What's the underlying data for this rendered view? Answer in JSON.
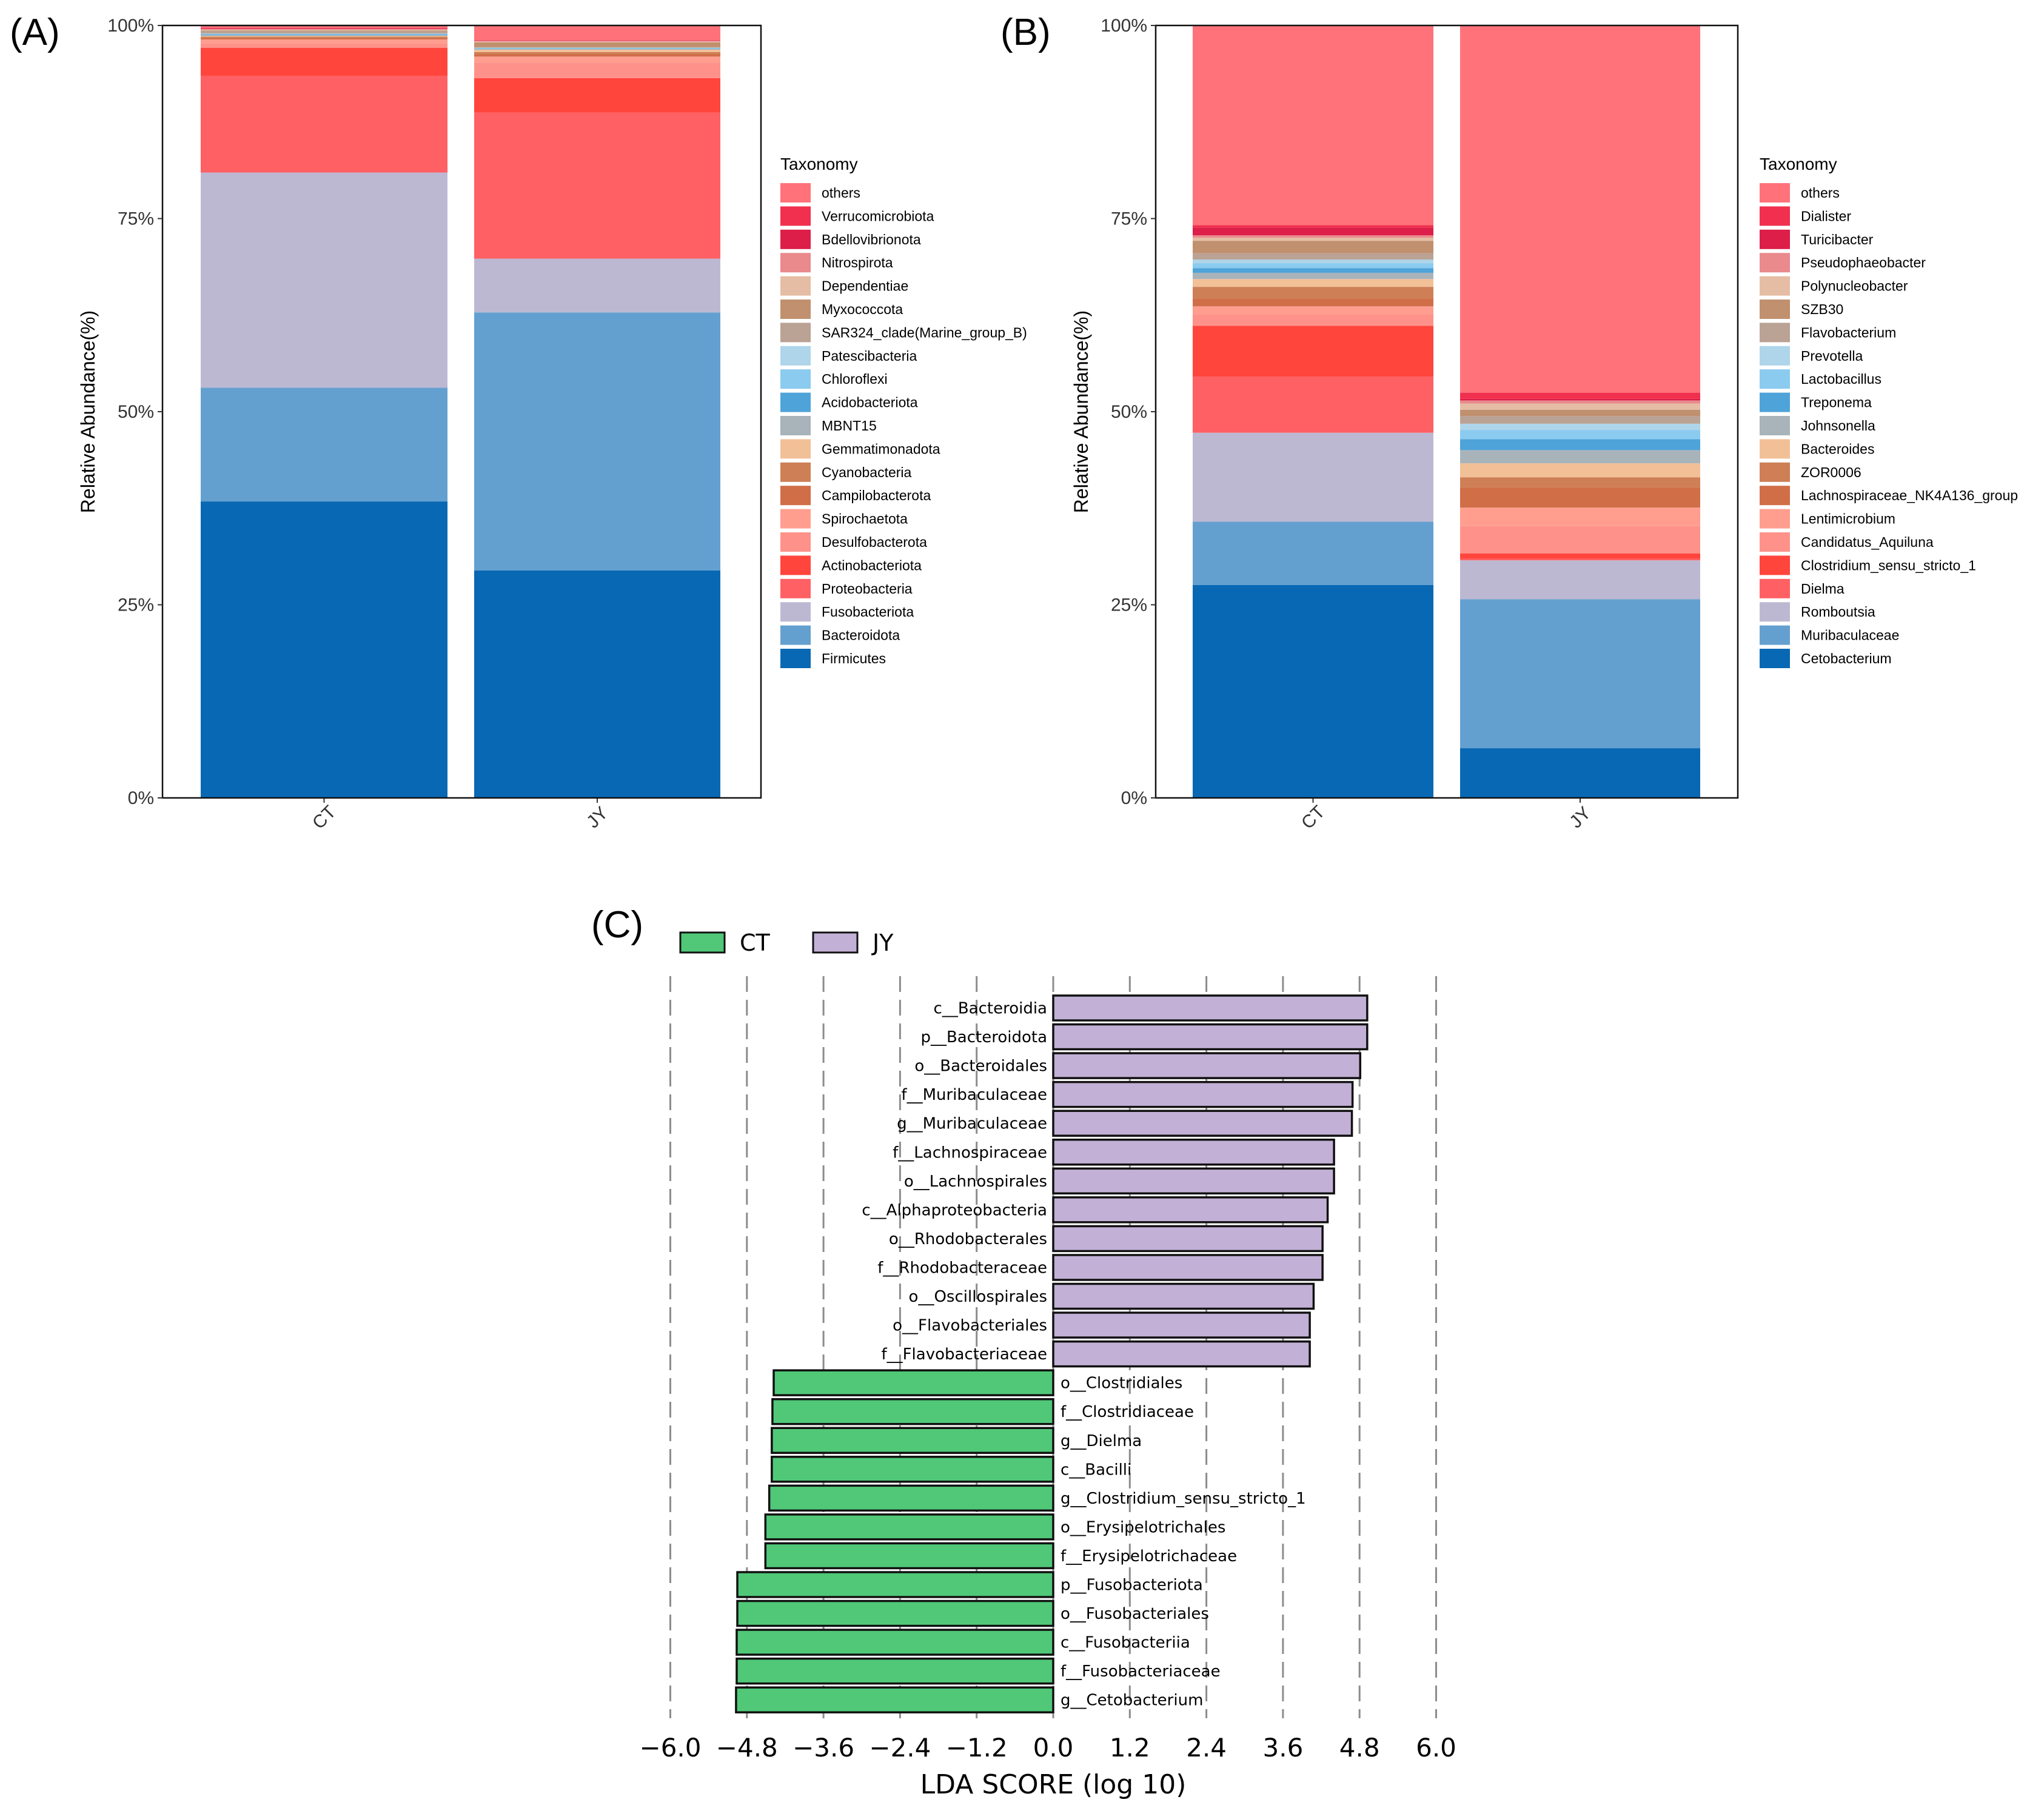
{
  "chart_data": [
    {
      "panel": "(A)",
      "type": "bar",
      "stacked": true,
      "ylabel": "Relative Abundance(%)",
      "ylim": [
        0,
        100
      ],
      "yticks": [
        "0%",
        "25%",
        "50%",
        "75%",
        "100%"
      ],
      "categories": [
        "CT",
        "JY"
      ],
      "legend_title": "Taxonomy",
      "legend_position": "right",
      "series": [
        {
          "name": "Firmicutes",
          "color": "#0868B4",
          "values": [
            38.3,
            29.6
          ]
        },
        {
          "name": "Bacteroidota",
          "color": "#64A0CF",
          "values": [
            14.7,
            33.6
          ]
        },
        {
          "name": "Fusobacteriota",
          "color": "#BDB8D2",
          "values": [
            27.8,
            7.0
          ]
        },
        {
          "name": "Proteobacteria",
          "color": "#FF6064",
          "values": [
            12.5,
            19.0
          ]
        },
        {
          "name": "Actinobacteriota",
          "color": "#FF453C",
          "values": [
            3.6,
            4.5
          ]
        },
        {
          "name": "Desulfobacterota",
          "color": "#FE928A",
          "values": [
            0.6,
            2.0
          ]
        },
        {
          "name": "Spirochaetota",
          "color": "#FF9E8F",
          "values": [
            0.5,
            0.8
          ]
        },
        {
          "name": "Campilobacterota",
          "color": "#D06E48",
          "values": [
            0.2,
            0.3
          ]
        },
        {
          "name": "Cyanobacteria",
          "color": "#CE7F56",
          "values": [
            0.15,
            0.3
          ]
        },
        {
          "name": "Gemmatimonadota",
          "color": "#F2C097",
          "values": [
            0.1,
            0.3
          ]
        },
        {
          "name": "MBNT15",
          "color": "#A8B3BA",
          "values": [
            0.1,
            0.1
          ]
        },
        {
          "name": "Acidobacteriota",
          "color": "#4EA3D9",
          "values": [
            0.1,
            0.05
          ]
        },
        {
          "name": "Chloroflexi",
          "color": "#8BCBEF",
          "values": [
            0.05,
            0.05
          ]
        },
        {
          "name": "Patescibacteria",
          "color": "#AED5EA",
          "values": [
            0.05,
            0.05
          ]
        },
        {
          "name": "SAR324_clade(Marine_group_B)",
          "color": "#BAA294",
          "values": [
            0.3,
            0.1
          ]
        },
        {
          "name": "Myxococcota",
          "color": "#C0906F",
          "values": [
            0.1,
            0.6
          ]
        },
        {
          "name": "Dependentiae",
          "color": "#E5BDA4",
          "values": [
            0.1,
            0.1
          ]
        },
        {
          "name": "Nitrospirota",
          "color": "#EA8A8D",
          "values": [
            0.1,
            0.1
          ]
        },
        {
          "name": "Bdellovibrionota",
          "color": "#DC1E48",
          "values": [
            0.05,
            0.05
          ]
        },
        {
          "name": "Verrucomicrobiota",
          "color": "#F0304E",
          "values": [
            0.1,
            0.05
          ]
        },
        {
          "name": "others",
          "color": "#FF727A",
          "values": [
            0.3,
            1.9
          ]
        }
      ]
    },
    {
      "panel": "(B)",
      "type": "bar",
      "stacked": true,
      "ylabel": "Relative Abundance(%)",
      "ylim": [
        0,
        100
      ],
      "yticks": [
        "0%",
        "25%",
        "50%",
        "75%",
        "100%"
      ],
      "categories": [
        "CT",
        "JY"
      ],
      "legend_title": "Taxonomy",
      "legend_position": "right",
      "series": [
        {
          "name": "Cetobacterium",
          "color": "#0868B4",
          "values": [
            27.3,
            6.4
          ]
        },
        {
          "name": "Muribaculaceae",
          "color": "#64A0CF",
          "values": [
            8.1,
            19.2
          ]
        },
        {
          "name": "Romboutsia",
          "color": "#BDB8D2",
          "values": [
            11.4,
            5.0
          ]
        },
        {
          "name": "Dielma",
          "color": "#FF6064",
          "values": [
            7.2,
            0.2
          ]
        },
        {
          "name": "Clostridium_sensu_stricto_1",
          "color": "#FF453C",
          "values": [
            6.5,
            0.7
          ]
        },
        {
          "name": "Candidatus_Aquiluna",
          "color": "#FE928A",
          "values": [
            1.5,
            3.5
          ]
        },
        {
          "name": "Lentimicrobium",
          "color": "#FF9E8F",
          "values": [
            1.0,
            2.4
          ]
        },
        {
          "name": "Lachnospiraceae_NK4A136_group",
          "color": "#D06E48",
          "values": [
            1.0,
            2.6
          ]
        },
        {
          "name": "ZOR0006",
          "color": "#CE7F56",
          "values": [
            1.5,
            1.3
          ]
        },
        {
          "name": "Bacteroides",
          "color": "#F2C097",
          "values": [
            1.0,
            1.8
          ]
        },
        {
          "name": "Johnsonella",
          "color": "#A8B3BA",
          "values": [
            0.8,
            1.7
          ]
        },
        {
          "name": "Treponema",
          "color": "#4EA3D9",
          "values": [
            0.6,
            1.4
          ]
        },
        {
          "name": "Lactobacillus",
          "color": "#8BCBEF",
          "values": [
            0.6,
            1.2
          ]
        },
        {
          "name": "Prevotella",
          "color": "#AED5EA",
          "values": [
            0.5,
            0.8
          ]
        },
        {
          "name": "Flavobacterium",
          "color": "#BAA294",
          "values": [
            0.8,
            1.0
          ]
        },
        {
          "name": "SZB30",
          "color": "#C0906F",
          "values": [
            1.6,
            0.8
          ]
        },
        {
          "name": "Polynucleobacter",
          "color": "#E5BDA4",
          "values": [
            0.4,
            0.8
          ]
        },
        {
          "name": "Pseudophaeobacter",
          "color": "#EA8A8D",
          "values": [
            0.3,
            0.4
          ]
        },
        {
          "name": "Turicibacter",
          "color": "#DC1E48",
          "values": [
            1.0,
            0.2
          ]
        },
        {
          "name": "Dialister",
          "color": "#F0304E",
          "values": [
            0.3,
            0.8
          ]
        },
        {
          "name": "others",
          "color": "#FF727A",
          "values": [
            25.6,
            47.3
          ]
        }
      ]
    },
    {
      "panel": "(C)",
      "type": "bar",
      "orientation": "horizontal",
      "xlabel": "LDA SCORE (log 10)",
      "xlim": [
        -6.0,
        6.0
      ],
      "xticks": [
        "−6.0",
        "−4.8",
        "−3.6",
        "−2.4",
        "−1.2",
        "0.0",
        "1.2",
        "2.4",
        "3.6",
        "4.8",
        "6.0"
      ],
      "grid": "vertical dashed",
      "legend_position": "top-left",
      "groups": [
        {
          "name": "CT",
          "color": "#50C878"
        },
        {
          "name": "JY",
          "color": "#C2B0D6"
        }
      ],
      "bars": [
        {
          "label": "c__Bacteroidia",
          "group": "JY",
          "value": 4.92
        },
        {
          "label": "p__Bacteroidota",
          "group": "JY",
          "value": 4.92
        },
        {
          "label": "o__Bacteroidales",
          "group": "JY",
          "value": 4.81
        },
        {
          "label": "f__Muribaculaceae",
          "group": "JY",
          "value": 4.69
        },
        {
          "label": "g__Muribaculaceae",
          "group": "JY",
          "value": 4.68
        },
        {
          "label": "f__Lachnospiraceae",
          "group": "JY",
          "value": 4.4
        },
        {
          "label": "o__Lachnospirales",
          "group": "JY",
          "value": 4.4
        },
        {
          "label": "c__Alphaproteobacteria",
          "group": "JY",
          "value": 4.3
        },
        {
          "label": "o__Rhodobacterales",
          "group": "JY",
          "value": 4.22
        },
        {
          "label": "f__Rhodobacteraceae",
          "group": "JY",
          "value": 4.22
        },
        {
          "label": "o__Oscillospirales",
          "group": "JY",
          "value": 4.08
        },
        {
          "label": "o__Flavobacteriales",
          "group": "JY",
          "value": 4.02
        },
        {
          "label": "f__Flavobacteriaceae",
          "group": "JY",
          "value": 4.02
        },
        {
          "label": "o__Clostridiales",
          "group": "CT",
          "value": -4.38
        },
        {
          "label": "f__Clostridiaceae",
          "group": "CT",
          "value": -4.4
        },
        {
          "label": "g__Dielma",
          "group": "CT",
          "value": -4.41
        },
        {
          "label": "c__Bacilli",
          "group": "CT",
          "value": -4.41
        },
        {
          "label": "g__Clostridium_sensu_stricto_1",
          "group": "CT",
          "value": -4.45
        },
        {
          "label": "o__Erysipelotrichales",
          "group": "CT",
          "value": -4.51
        },
        {
          "label": "f__Erysipelotrichaceae",
          "group": "CT",
          "value": -4.51
        },
        {
          "label": "p__Fusobacteriota",
          "group": "CT",
          "value": -4.95
        },
        {
          "label": "o__Fusobacteriales",
          "group": "CT",
          "value": -4.95
        },
        {
          "label": "c__Fusobacteriia",
          "group": "CT",
          "value": -4.96
        },
        {
          "label": "f__Fusobacteriaceae",
          "group": "CT",
          "value": -4.96
        },
        {
          "label": "g__Cetobacterium",
          "group": "CT",
          "value": -4.97
        }
      ]
    }
  ]
}
